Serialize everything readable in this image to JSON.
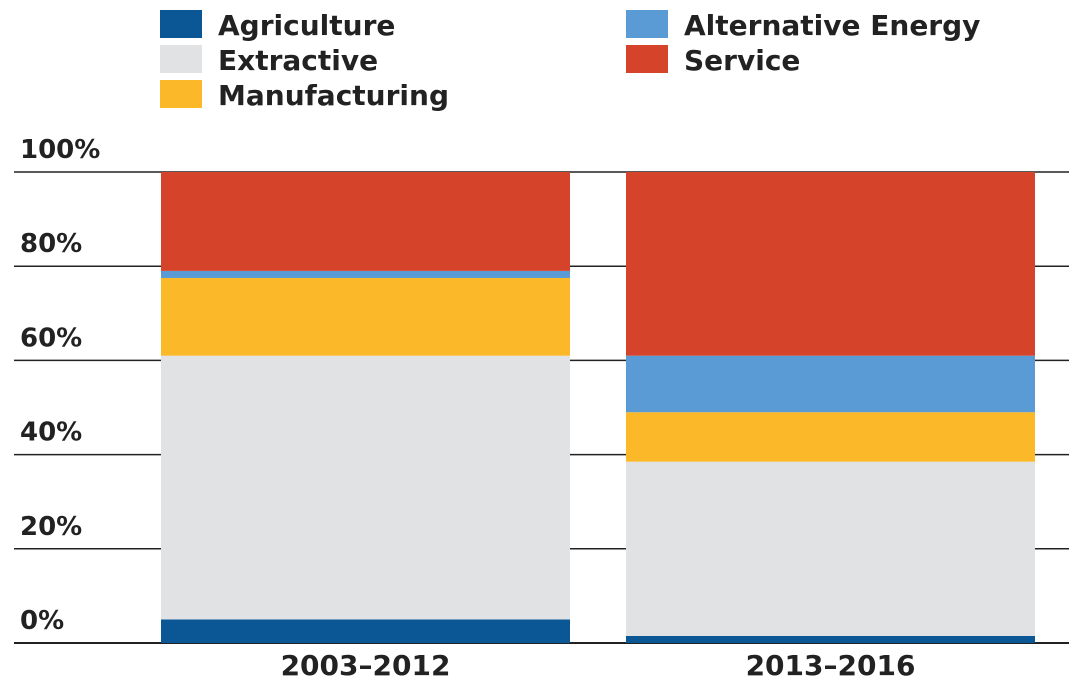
{
  "chart_data": {
    "type": "bar",
    "stacked": true,
    "categories": [
      "2003–2012",
      "2013–2016"
    ],
    "series": [
      {
        "name": "Agriculture",
        "color": "#0b5796",
        "values": [
          5,
          1.5
        ]
      },
      {
        "name": "Extractive",
        "color": "#e1e2e4",
        "values": [
          56,
          37
        ]
      },
      {
        "name": "Manufacturing",
        "color": "#fbb829",
        "values": [
          16.5,
          10.5
        ]
      },
      {
        "name": "Alternative Energy",
        "color": "#5b9bd5",
        "values": [
          1.5,
          12
        ]
      },
      {
        "name": "Service",
        "color": "#d6432b",
        "values": [
          21,
          39
        ]
      }
    ],
    "ylim": [
      0,
      100
    ],
    "yticks": [
      "0%",
      "20%",
      "40%",
      "60%",
      "80%",
      "100%"
    ],
    "ytick_values": [
      0,
      20,
      40,
      60,
      80,
      100
    ],
    "grid": true,
    "legend": {
      "placement": "top",
      "order": [
        "Agriculture",
        "Alternative Energy",
        "Extractive",
        "Service",
        "Manufacturing"
      ]
    }
  }
}
